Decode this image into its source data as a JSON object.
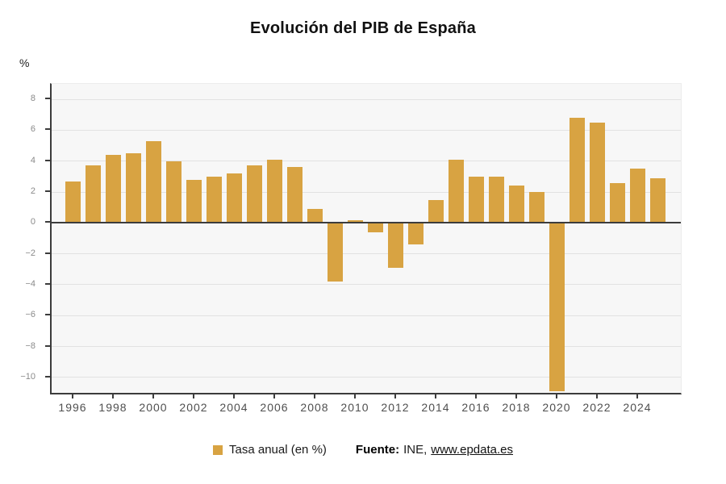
{
  "title": "Evolución del PIB de España",
  "y_axis_unit_label": "%",
  "legend": {
    "series_label": "Tasa anual (en %)",
    "source_label": "Fuente:",
    "source_text": "INE,",
    "source_link": "www.epdata.es"
  },
  "colors": {
    "bar": "#D8A342",
    "plot_background": "#F7F7F7",
    "grid": "#E2E2E2",
    "axis": "#3C3C3C",
    "y_tick_label": "#8A8A8A",
    "x_tick_label": "#4F4F4F"
  },
  "chart_data": {
    "type": "bar",
    "title": "Evolución del PIB de España",
    "xlabel": "",
    "ylabel": "%",
    "series_name": "Tasa anual (en %)",
    "source": "Fuente: INE, www.epdata.es",
    "categories": [
      1996,
      1997,
      1998,
      1999,
      2000,
      2001,
      2002,
      2003,
      2004,
      2005,
      2006,
      2007,
      2008,
      2009,
      2010,
      2011,
      2012,
      2013,
      2014,
      2015,
      2016,
      2017,
      2018,
      2019,
      2020,
      2021,
      2022,
      2023,
      2024,
      2025
    ],
    "values": [
      2.7,
      3.7,
      4.4,
      4.5,
      5.3,
      4.0,
      2.8,
      3.0,
      3.2,
      3.7,
      4.1,
      3.6,
      0.9,
      -3.8,
      0.2,
      -0.6,
      -2.9,
      -1.4,
      1.5,
      4.1,
      3.0,
      3.0,
      2.4,
      2.0,
      -10.9,
      6.8,
      6.5,
      2.6,
      3.5,
      2.9
    ],
    "ylim": [
      -11,
      9
    ],
    "y_ticks": [
      8,
      6,
      4,
      2,
      0,
      -2,
      -4,
      -6,
      -8,
      -10
    ],
    "x_tick_labels": [
      "1996",
      "1998",
      "2000",
      "2002",
      "2004",
      "2006",
      "2008",
      "2010",
      "2012",
      "2014",
      "2016",
      "2018",
      "2020",
      "2022",
      "2024"
    ],
    "grid": true,
    "legend_position": "bottom"
  }
}
